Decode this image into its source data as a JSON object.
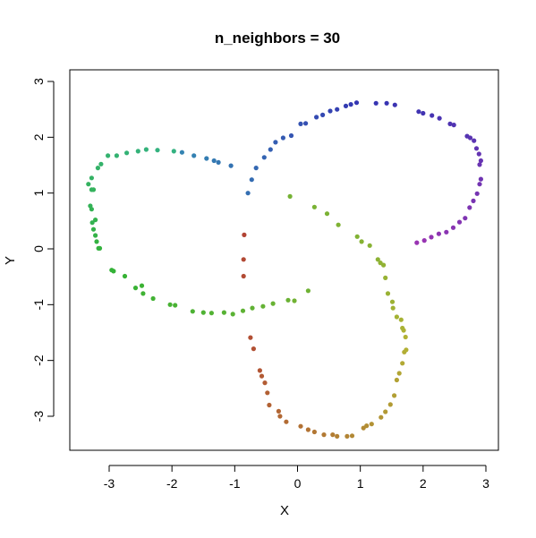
{
  "chart_data": {
    "type": "scatter",
    "title": "n_neighbors = 30",
    "xlabel": "X",
    "ylabel": "Y",
    "xlim": [
      -3.5,
      3.2
    ],
    "ylim": [
      -3.6,
      3.2
    ],
    "xticks": [
      -3,
      -2,
      -1,
      0,
      1,
      2,
      3
    ],
    "yticks": [
      -3,
      -2,
      -1,
      0,
      1,
      2,
      3
    ],
    "xtick_labels": [
      "-3",
      "-2",
      "-1",
      "0",
      "1",
      "2",
      "3"
    ],
    "ytick_labels": [
      "-3",
      "-2",
      "-1",
      "0",
      "1",
      "2",
      "3"
    ],
    "grid": false,
    "legend": "none",
    "color_scale": "rainbow hue along point order",
    "points": [
      [
        -0.85,
        0.25
      ],
      [
        -0.86,
        -0.19
      ],
      [
        -0.86,
        -0.49
      ],
      [
        -0.75,
        -1.59
      ],
      [
        -0.7,
        -1.79
      ],
      [
        -0.6,
        -2.18
      ],
      [
        -0.57,
        -2.28
      ],
      [
        -0.52,
        -2.4
      ],
      [
        -0.48,
        -2.58
      ],
      [
        -0.45,
        -2.8
      ],
      [
        -0.3,
        -2.91
      ],
      [
        -0.28,
        -3.0
      ],
      [
        -0.18,
        -3.1
      ],
      [
        0.05,
        -3.18
      ],
      [
        0.17,
        -3.24
      ],
      [
        0.27,
        -3.28
      ],
      [
        0.42,
        -3.33
      ],
      [
        0.56,
        -3.33
      ],
      [
        0.63,
        -3.36
      ],
      [
        0.79,
        -3.36
      ],
      [
        0.87,
        -3.35
      ],
      [
        1.05,
        -3.21
      ],
      [
        1.1,
        -3.17
      ],
      [
        1.18,
        -3.14
      ],
      [
        1.33,
        -3.02
      ],
      [
        1.4,
        -2.92
      ],
      [
        1.48,
        -2.79
      ],
      [
        1.54,
        -2.63
      ],
      [
        1.58,
        -2.35
      ],
      [
        1.62,
        -2.23
      ],
      [
        1.67,
        -2.05
      ],
      [
        1.7,
        -1.85
      ],
      [
        1.73,
        -1.81
      ],
      [
        1.72,
        -1.58
      ],
      [
        1.69,
        -1.46
      ],
      [
        1.67,
        -1.42
      ],
      [
        1.65,
        -1.27
      ],
      [
        1.58,
        -1.22
      ],
      [
        1.52,
        -1.06
      ],
      [
        1.51,
        -0.95
      ],
      [
        1.44,
        -0.8
      ],
      [
        1.4,
        -0.52
      ],
      [
        1.37,
        -0.29
      ],
      [
        1.32,
        -0.25
      ],
      [
        1.28,
        -0.19
      ],
      [
        1.15,
        0.06
      ],
      [
        1.02,
        0.13
      ],
      [
        0.95,
        0.22
      ],
      [
        0.65,
        0.43
      ],
      [
        0.47,
        0.63
      ],
      [
        0.27,
        0.75
      ],
      [
        -0.12,
        0.94
      ],
      [
        -0.05,
        -0.93
      ],
      [
        0.17,
        -0.75
      ],
      [
        -0.15,
        -0.92
      ],
      [
        -0.39,
        -0.98
      ],
      [
        -0.55,
        -1.03
      ],
      [
        -0.72,
        -1.06
      ],
      [
        -0.87,
        -1.11
      ],
      [
        -1.03,
        -1.17
      ],
      [
        -1.17,
        -1.14
      ],
      [
        -1.37,
        -1.15
      ],
      [
        -1.5,
        -1.14
      ],
      [
        -1.67,
        -1.12
      ],
      [
        -1.95,
        -1.01
      ],
      [
        -2.03,
        -1.0
      ],
      [
        -2.3,
        -0.89
      ],
      [
        -2.46,
        -0.8
      ],
      [
        -2.48,
        -0.66
      ],
      [
        -2.58,
        -0.7
      ],
      [
        -2.75,
        -0.49
      ],
      [
        -2.93,
        -0.4
      ],
      [
        -2.96,
        -0.38
      ],
      [
        -3.15,
        0.01
      ],
      [
        -3.17,
        0.01
      ],
      [
        -3.2,
        0.13
      ],
      [
        -3.22,
        0.24
      ],
      [
        -3.25,
        0.35
      ],
      [
        -3.22,
        0.52
      ],
      [
        -3.27,
        0.47
      ],
      [
        -3.28,
        0.71
      ],
      [
        -3.3,
        0.77
      ],
      [
        -3.25,
        1.06
      ],
      [
        -3.28,
        1.06
      ],
      [
        -3.33,
        1.16
      ],
      [
        -3.28,
        1.27
      ],
      [
        -3.18,
        1.45
      ],
      [
        -3.13,
        1.52
      ],
      [
        -3.02,
        1.67
      ],
      [
        -2.88,
        1.67
      ],
      [
        -2.72,
        1.72
      ],
      [
        -2.54,
        1.75
      ],
      [
        -2.41,
        1.78
      ],
      [
        -2.23,
        1.77
      ],
      [
        -1.97,
        1.75
      ],
      [
        -1.84,
        1.73
      ],
      [
        -1.65,
        1.67
      ],
      [
        -1.45,
        1.62
      ],
      [
        -1.33,
        1.58
      ],
      [
        -1.26,
        1.55
      ],
      [
        -1.06,
        1.49
      ],
      [
        -0.79,
        1.0
      ],
      [
        -0.73,
        1.24
      ],
      [
        -0.66,
        1.45
      ],
      [
        -0.53,
        1.64
      ],
      [
        -0.43,
        1.78
      ],
      [
        -0.35,
        1.91
      ],
      [
        -0.23,
        1.99
      ],
      [
        -0.1,
        2.03
      ],
      [
        0.05,
        2.24
      ],
      [
        0.13,
        2.25
      ],
      [
        0.3,
        2.36
      ],
      [
        0.4,
        2.4
      ],
      [
        0.52,
        2.47
      ],
      [
        0.63,
        2.5
      ],
      [
        0.77,
        2.56
      ],
      [
        0.85,
        2.59
      ],
      [
        0.94,
        2.62
      ],
      [
        1.25,
        2.61
      ],
      [
        1.42,
        2.61
      ],
      [
        1.55,
        2.58
      ],
      [
        1.93,
        2.46
      ],
      [
        2.0,
        2.43
      ],
      [
        2.14,
        2.39
      ],
      [
        2.26,
        2.34
      ],
      [
        2.43,
        2.24
      ],
      [
        2.49,
        2.22
      ],
      [
        2.7,
        2.02
      ],
      [
        2.75,
        1.99
      ],
      [
        2.81,
        1.94
      ],
      [
        2.85,
        1.8
      ],
      [
        2.89,
        1.7
      ],
      [
        2.92,
        1.58
      ],
      [
        2.9,
        1.51
      ],
      [
        2.92,
        1.25
      ],
      [
        2.9,
        1.16
      ],
      [
        2.86,
        0.99
      ],
      [
        2.8,
        0.86
      ],
      [
        2.74,
        0.74
      ],
      [
        2.67,
        0.55
      ],
      [
        2.58,
        0.48
      ],
      [
        2.48,
        0.38
      ],
      [
        2.37,
        0.3
      ],
      [
        2.25,
        0.27
      ],
      [
        2.13,
        0.21
      ],
      [
        2.02,
        0.15
      ],
      [
        1.9,
        0.11
      ]
    ]
  }
}
